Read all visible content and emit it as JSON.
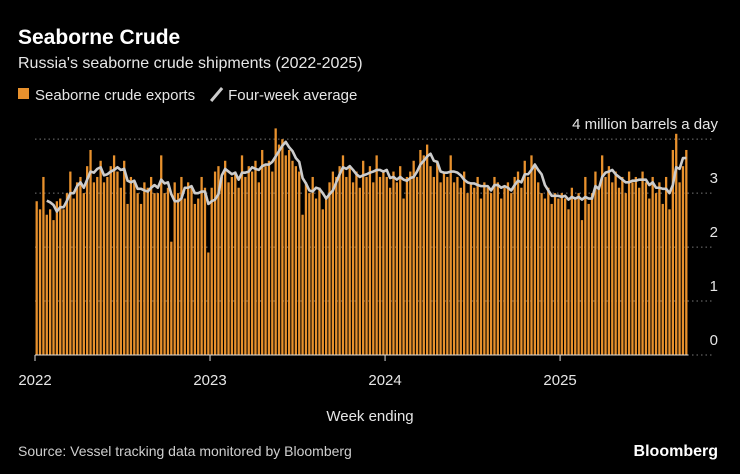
{
  "chart_data": {
    "type": "bar",
    "title": "Seaborne Crude",
    "subtitle": "Russia's seaborne crude shipments (2022-2025)",
    "x_label": "Week ending",
    "source": "Source: Vessel tracking data monitored by Bloomberg",
    "brand": "Bloomberg",
    "categories": [
      "2022",
      null,
      null,
      null,
      null,
      null,
      null,
      null,
      null,
      null,
      null,
      null,
      null,
      null,
      null,
      null,
      null,
      null,
      null,
      null,
      null,
      null,
      null,
      null,
      null,
      null,
      null,
      null,
      null,
      null,
      null,
      null,
      null,
      null,
      null,
      null,
      null,
      null,
      null,
      null,
      null,
      null,
      null,
      null,
      null,
      null,
      null,
      null,
      null,
      null,
      null,
      null,
      "2023",
      null,
      null,
      null,
      null,
      null,
      null,
      null,
      null,
      null,
      null,
      null,
      null,
      null,
      null,
      null,
      null,
      null,
      null,
      null,
      null,
      null,
      null,
      null,
      null,
      null,
      null,
      null,
      null,
      null,
      null,
      null,
      null,
      null,
      null,
      null,
      null,
      null,
      null,
      null,
      null,
      null,
      null,
      null,
      null,
      null,
      null,
      null,
      null,
      null,
      null,
      null,
      "2024",
      null,
      null,
      null,
      null,
      null,
      null,
      null,
      null,
      null,
      null,
      null,
      null,
      null,
      null,
      null,
      null,
      null,
      null,
      null,
      null,
      null,
      null,
      null,
      null,
      null,
      null,
      null,
      null,
      null,
      null,
      null,
      null,
      null,
      null,
      null,
      null,
      null,
      null,
      null,
      null,
      null,
      null,
      null,
      null,
      null,
      null,
      null,
      null,
      null,
      null,
      null,
      "2025",
      null,
      null,
      null,
      null,
      null,
      null,
      null,
      null,
      null,
      null,
      null,
      null,
      null,
      null,
      null,
      null,
      null,
      null,
      null,
      null,
      null,
      null,
      null,
      null,
      null,
      null,
      null,
      null,
      null,
      null,
      null,
      null,
      null,
      null,
      null,
      null,
      null
    ],
    "series": [
      {
        "name": "Seaborne crude exports",
        "type": "bar",
        "color": "#e8912d",
        "values": [
          2.85,
          2.7,
          3.3,
          2.6,
          2.7,
          2.5,
          2.85,
          2.9,
          2.7,
          3.0,
          3.4,
          2.9,
          3.2,
          3.3,
          3.0,
          3.5,
          3.8,
          3.2,
          3.3,
          3.6,
          3.2,
          3.3,
          3.5,
          3.7,
          3.4,
          3.1,
          3.6,
          2.8,
          3.3,
          3.2,
          3.0,
          2.8,
          3.2,
          3.1,
          3.3,
          3.0,
          3.0,
          3.7,
          3.0,
          3.1,
          2.1,
          3.2,
          3.0,
          3.3,
          2.9,
          3.2,
          3.1,
          2.8,
          2.9,
          3.3,
          3.1,
          1.9,
          3.1,
          3.4,
          3.5,
          3.3,
          3.6,
          3.2,
          3.3,
          3.4,
          3.1,
          3.7,
          3.3,
          3.5,
          3.4,
          3.6,
          3.2,
          3.8,
          3.5,
          3.6,
          3.4,
          4.2,
          3.9,
          4.0,
          3.7,
          3.8,
          3.6,
          3.5,
          3.4,
          2.6,
          3.2,
          3.0,
          3.3,
          2.9,
          3.1,
          2.7,
          2.9,
          3.2,
          3.4,
          3.3,
          3.5,
          3.7,
          3.3,
          3.5,
          3.2,
          3.4,
          3.1,
          3.6,
          3.3,
          3.5,
          3.2,
          3.7,
          3.3,
          3.4,
          3.3,
          3.1,
          3.4,
          3.2,
          3.5,
          2.9,
          3.3,
          3.4,
          3.6,
          3.3,
          3.8,
          3.7,
          3.9,
          3.5,
          3.3,
          3.6,
          3.2,
          3.4,
          3.3,
          3.7,
          3.2,
          3.3,
          3.1,
          3.4,
          3.0,
          3.2,
          3.1,
          3.3,
          2.9,
          3.2,
          3.1,
          3.0,
          3.3,
          3.2,
          2.9,
          3.1,
          3.2,
          3.0,
          3.3,
          3.4,
          3.1,
          3.6,
          3.3,
          3.7,
          3.5,
          3.2,
          3.0,
          2.9,
          3.1,
          2.8,
          3.0,
          2.9,
          3.0,
          2.9,
          2.7,
          3.1,
          2.9,
          3.0,
          2.5,
          3.3,
          2.8,
          3.0,
          3.4,
          3.1,
          3.7,
          3.3,
          3.5,
          3.2,
          3.4,
          3.1,
          3.3,
          3.0,
          3.4,
          3.2,
          3.3,
          3.1,
          3.4,
          3.2,
          2.9,
          3.3,
          3.0,
          3.2,
          2.8,
          3.3,
          2.7,
          3.8,
          4.1,
          3.2,
          3.5,
          3.8
        ]
      },
      {
        "name": "Four-week average",
        "type": "line",
        "color": "#cccccc",
        "values": [
          null,
          null,
          null,
          2.86,
          2.83,
          2.78,
          2.66,
          2.74,
          2.74,
          2.86,
          3.0,
          3.0,
          3.13,
          3.2,
          3.1,
          3.25,
          3.4,
          3.38,
          3.45,
          3.48,
          3.33,
          3.35,
          3.4,
          3.43,
          3.48,
          3.43,
          3.45,
          3.23,
          3.2,
          3.23,
          3.08,
          3.08,
          3.05,
          3.03,
          3.1,
          3.15,
          3.1,
          3.25,
          3.18,
          3.2,
          2.98,
          2.85,
          2.85,
          2.9,
          3.1,
          3.1,
          3.13,
          3.0,
          3.0,
          3.03,
          3.03,
          2.8,
          2.85,
          2.88,
          2.98,
          3.33,
          3.45,
          3.4,
          3.35,
          3.38,
          3.25,
          3.38,
          3.38,
          3.4,
          3.48,
          3.45,
          3.43,
          3.5,
          3.53,
          3.53,
          3.58,
          3.68,
          3.78,
          3.88,
          3.95,
          3.85,
          3.78,
          3.65,
          3.58,
          3.28,
          3.18,
          3.05,
          3.03,
          3.1,
          3.08,
          3.0,
          2.9,
          2.98,
          3.05,
          3.2,
          3.35,
          3.48,
          3.45,
          3.5,
          3.43,
          3.35,
          3.3,
          3.33,
          3.35,
          3.38,
          3.4,
          3.43,
          3.43,
          3.4,
          3.43,
          3.28,
          3.3,
          3.25,
          3.3,
          3.25,
          3.23,
          3.28,
          3.3,
          3.4,
          3.53,
          3.6,
          3.68,
          3.73,
          3.6,
          3.58,
          3.4,
          3.38,
          3.38,
          3.4,
          3.4,
          3.38,
          3.33,
          3.25,
          3.2,
          3.18,
          3.18,
          3.15,
          3.13,
          3.13,
          3.13,
          3.05,
          3.15,
          3.15,
          3.1,
          3.13,
          3.1,
          3.05,
          3.15,
          3.23,
          3.2,
          3.35,
          3.35,
          3.43,
          3.53,
          3.43,
          3.35,
          3.15,
          3.05,
          2.95,
          2.95,
          2.95,
          2.93,
          2.95,
          2.88,
          2.93,
          2.9,
          2.93,
          2.88,
          2.93,
          2.9,
          2.9,
          3.13,
          3.08,
          3.3,
          3.38,
          3.4,
          3.43,
          3.35,
          3.3,
          3.25,
          3.2,
          3.2,
          3.23,
          3.23,
          3.25,
          3.25,
          3.25,
          3.15,
          3.2,
          3.1,
          3.1,
          3.08,
          3.08,
          3.0,
          3.15,
          3.48,
          3.45,
          3.65,
          3.65
        ]
      }
    ],
    "ylim": [
      0,
      4.3
    ],
    "yticks": [
      0,
      1,
      2,
      3,
      {
        "value": 4,
        "label": "4 million barrels a day"
      }
    ],
    "grid": true
  }
}
